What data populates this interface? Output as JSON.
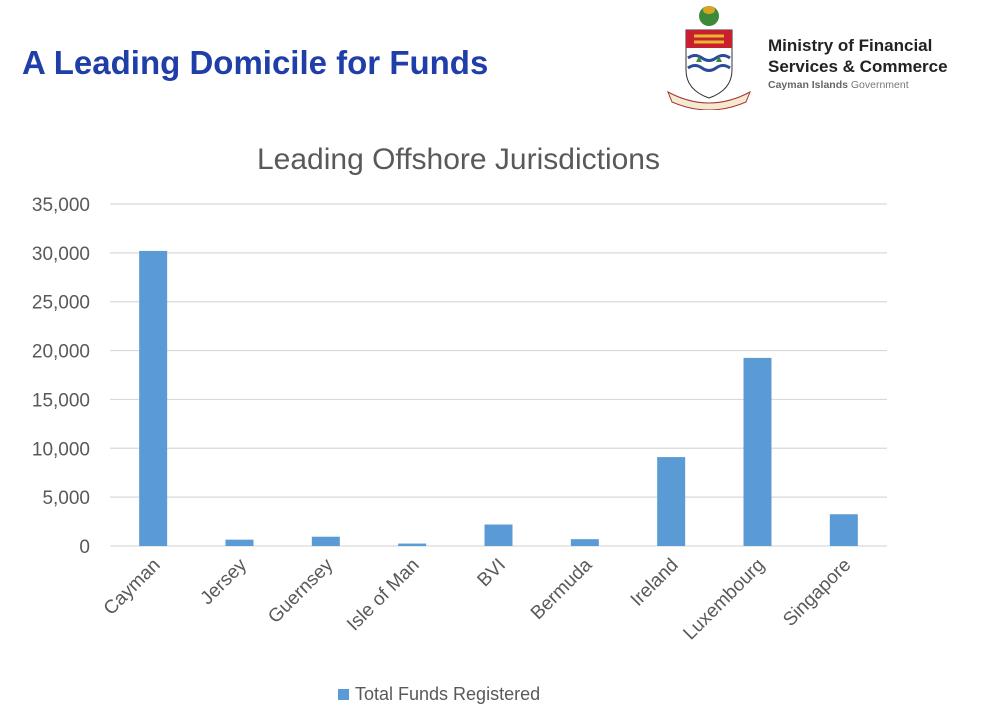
{
  "header": {
    "title": "A Leading Domicile for Funds",
    "ministry_line1": "Ministry of Financial",
    "ministry_line2": "Services & Commerce",
    "gov_bold": "Cayman Islands",
    "gov_rest": " Government",
    "logo_motto": "He hath founded it upon the seas"
  },
  "chart_data": {
    "type": "bar",
    "title": "Leading Offshore Jurisdictions",
    "categories": [
      "Cayman",
      "Jersey",
      "Guernsey",
      "Isle of Man",
      "BVI",
      "Bermuda",
      "Ireland",
      "Luxembourg",
      "Singapore"
    ],
    "series": [
      {
        "name": "Total Funds Registered",
        "values": [
          30200,
          650,
          950,
          250,
          2200,
          700,
          9100,
          19250,
          3250
        ],
        "color": "#5b9bd5"
      }
    ],
    "ylim": [
      0,
      35000
    ],
    "yticks": [
      "0",
      "5,000",
      "10,000",
      "15,000",
      "20,000",
      "25,000",
      "30,000",
      "35,000"
    ],
    "grid": true,
    "legend": "bottom"
  }
}
